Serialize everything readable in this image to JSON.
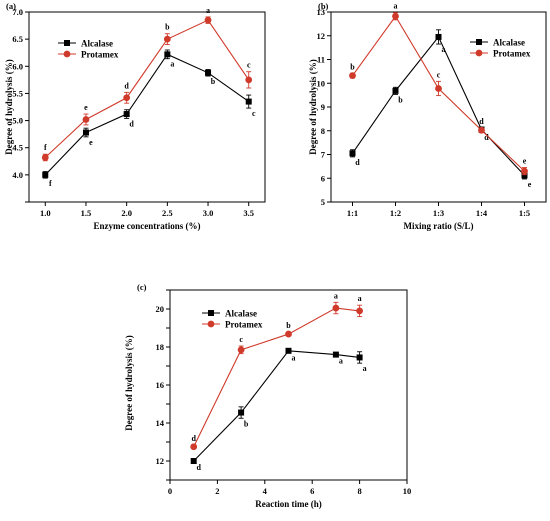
{
  "colors": {
    "alcalase": "#000000",
    "protamex": "#d03a2a",
    "axis": "#000000"
  },
  "chart_data": [
    {
      "panel": "(a)",
      "type": "line",
      "xlabel": "Enzyme concentrations (%)",
      "ylabel": "Degree of hydrolysis (%)",
      "x": [
        1.0,
        1.5,
        2.0,
        2.5,
        3.0,
        3.5
      ],
      "x_tick_labels": [
        "1.0",
        "1.5",
        "2.0",
        "2.5",
        "3.0",
        "3.5"
      ],
      "xlim": [
        0.8,
        3.7
      ],
      "ylim": [
        3.5,
        7.0
      ],
      "y_ticks": [
        3.5,
        4.0,
        4.5,
        5.0,
        5.5,
        6.0,
        6.5,
        7.0
      ],
      "y_tick_labels": [
        "",
        "4.0",
        "4.5",
        "5.0",
        "5.5",
        "6.0",
        "6.5",
        "7.0"
      ],
      "legend": "top-left",
      "series": [
        {
          "name": "Alcalase",
          "values": [
            4.0,
            4.78,
            5.12,
            6.22,
            5.88,
            5.35
          ],
          "errors": [
            0.06,
            0.08,
            0.08,
            0.08,
            0.06,
            0.12
          ],
          "letters": [
            "f",
            "e",
            "d",
            "a",
            "b",
            "c"
          ]
        },
        {
          "name": "Protamex",
          "values": [
            4.32,
            5.02,
            5.42,
            6.5,
            6.85,
            5.75
          ],
          "errors": [
            0.06,
            0.1,
            0.1,
            0.1,
            0.06,
            0.15
          ],
          "letters": [
            "f",
            "e",
            "d",
            "b",
            "a",
            "c"
          ]
        }
      ]
    },
    {
      "panel": "(b)",
      "type": "line",
      "xlabel": "Mixing ratio (S/L)",
      "ylabel": "Degree of hydrolysis (%)",
      "x": [
        "1:1",
        "1:2",
        "1:3",
        "1:4",
        "1:5"
      ],
      "x_tick_labels": [
        "1:1",
        "1:2",
        "1:3",
        "1:4",
        "1:5"
      ],
      "xlim": [
        0.5,
        5.5
      ],
      "ylim": [
        5,
        13
      ],
      "y_ticks": [
        5,
        6,
        7,
        8,
        9,
        10,
        11,
        12,
        13
      ],
      "y_tick_labels": [
        "5",
        "6",
        "7",
        "8",
        "9",
        "10",
        "11",
        "12",
        "13"
      ],
      "legend": "top-right",
      "series": [
        {
          "name": "Alcalase",
          "values": [
            7.05,
            9.68,
            11.95,
            8.05,
            6.12
          ],
          "errors": [
            0.15,
            0.15,
            0.3,
            0.1,
            0.15
          ],
          "letters": [
            "d",
            "b",
            "a",
            "d",
            "e"
          ]
        },
        {
          "name": "Protamex",
          "values": [
            10.32,
            12.82,
            9.78,
            8.02,
            6.3
          ],
          "errors": [
            0.1,
            0.15,
            0.3,
            0.1,
            0.15
          ],
          "letters": [
            "b",
            "a",
            "c",
            "d",
            "e"
          ]
        }
      ]
    },
    {
      "panel": "(c)",
      "type": "line",
      "xlabel": "Reaction time (h)",
      "ylabel": "Degree of hydrolysis (%)",
      "x": [
        1,
        3,
        5,
        7,
        8
      ],
      "x_ticks": [
        0,
        2,
        4,
        6,
        8,
        10
      ],
      "x_tick_labels": [
        "0",
        "2",
        "4",
        "6",
        "8",
        "10"
      ],
      "xlim": [
        0,
        10
      ],
      "ylim": [
        11,
        21
      ],
      "y_ticks": [
        11,
        12,
        13,
        14,
        15,
        16,
        17,
        18,
        19,
        20,
        21
      ],
      "y_tick_labels": [
        "",
        "12",
        "",
        "14",
        "",
        "16",
        "",
        "18",
        "",
        "20",
        ""
      ],
      "legend": "top-left",
      "series": [
        {
          "name": "Alcalase",
          "values": [
            12.0,
            14.55,
            17.8,
            17.6,
            17.45
          ],
          "errors": [
            0.05,
            0.3,
            0.1,
            0.05,
            0.3
          ],
          "letters": [
            "d",
            "b",
            "a",
            "a",
            "a"
          ]
        },
        {
          "name": "Protamex",
          "values": [
            12.75,
            17.85,
            18.68,
            20.05,
            19.9
          ],
          "errors": [
            0.1,
            0.2,
            0.1,
            0.3,
            0.3
          ],
          "letters": [
            "d",
            "c",
            "b",
            "a",
            "a"
          ]
        }
      ]
    }
  ]
}
